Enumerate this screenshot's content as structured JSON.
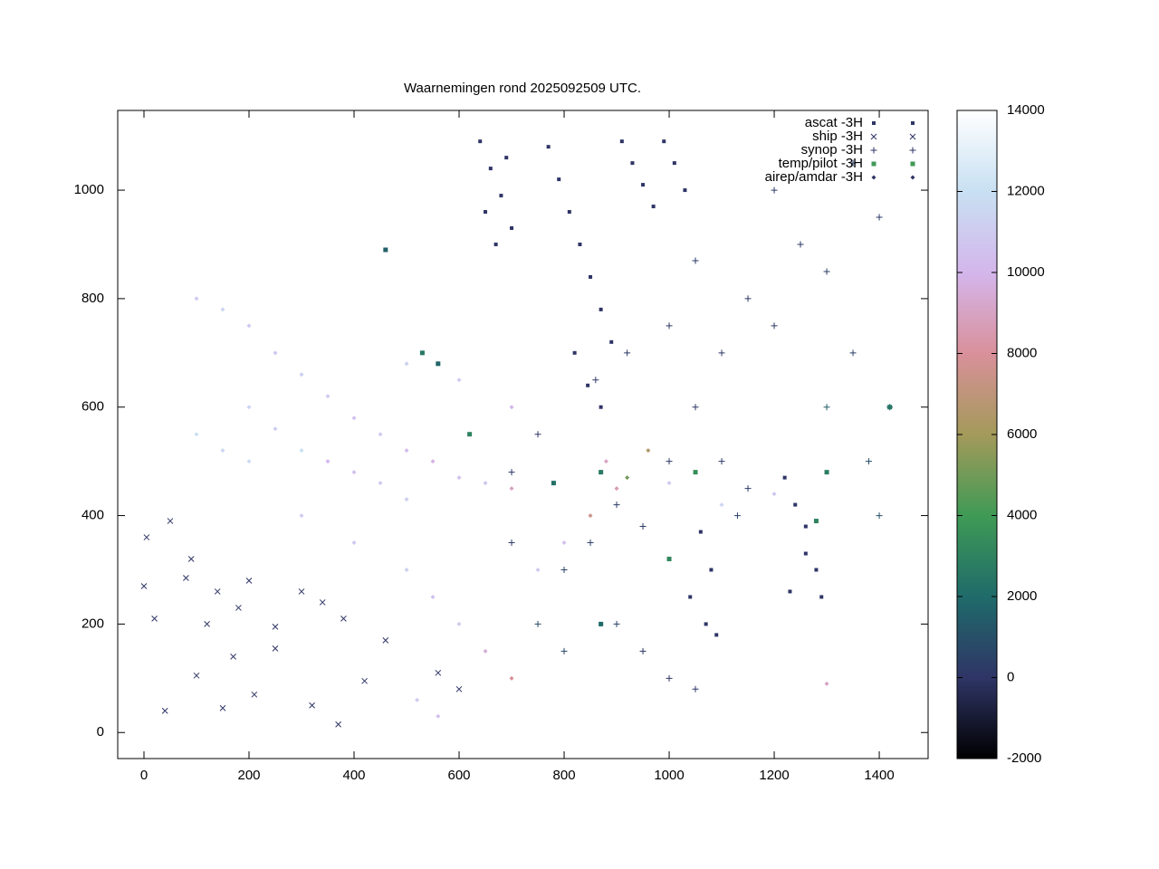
{
  "chart_data": {
    "type": "scatter",
    "title": "Waarnemingen rond 2025092509 UTC.",
    "xlim": [
      -50,
      1493
    ],
    "ylim": [
      -48,
      1147
    ],
    "xticks": [
      0,
      200,
      400,
      600,
      800,
      1000,
      1200,
      1400
    ],
    "yticks": [
      0,
      200,
      400,
      600,
      800,
      1000
    ],
    "colorbar": {
      "lim": [
        -2000,
        14000
      ],
      "ticks": [
        -2000,
        0,
        2000,
        4000,
        6000,
        8000,
        10000,
        12000,
        14000
      ],
      "palette": [
        {
          "value": -2000,
          "color": "#000000"
        },
        {
          "value": 0,
          "color": "#2f3566"
        },
        {
          "value": 2000,
          "color": "#1f6b6a"
        },
        {
          "value": 4000,
          "color": "#3f9a55"
        },
        {
          "value": 6000,
          "color": "#a49a5a"
        },
        {
          "value": 8000,
          "color": "#d9909a"
        },
        {
          "value": 10000,
          "color": "#d4b6ec"
        },
        {
          "value": 12000,
          "color": "#c8e0f2"
        },
        {
          "value": 14000,
          "color": "#ffffff"
        }
      ]
    },
    "series": [
      {
        "name": "ascat -3H",
        "marker": "dot",
        "color": "#2f3566",
        "x": [
          640,
          660,
          680,
          700,
          650,
          670,
          690,
          770,
          790,
          810,
          830,
          850,
          870,
          890,
          820,
          845,
          870,
          910,
          930,
          950,
          970,
          990,
          1010,
          1030,
          1060,
          1080,
          1040,
          1070,
          1090,
          1220,
          1240,
          1260,
          1280,
          1230,
          1260,
          1290
        ],
        "y": [
          1090,
          1040,
          990,
          930,
          960,
          900,
          1060,
          1080,
          1020,
          960,
          900,
          840,
          780,
          720,
          700,
          640,
          600,
          1090,
          1050,
          1010,
          970,
          1090,
          1050,
          1000,
          370,
          300,
          250,
          200,
          180,
          470,
          420,
          380,
          300,
          260,
          330,
          250
        ],
        "z": [
          0,
          0,
          0,
          0,
          0,
          0,
          0,
          0,
          0,
          0,
          0,
          0,
          0,
          0,
          0,
          0,
          0,
          0,
          0,
          0,
          0,
          0,
          0,
          0,
          0,
          0,
          0,
          0,
          0,
          0,
          0,
          0,
          0,
          0,
          0,
          0
        ]
      },
      {
        "name": "ship -3H",
        "marker": "cross",
        "color": "#2f3566",
        "x": [
          5,
          20,
          50,
          80,
          100,
          140,
          170,
          200,
          250,
          300,
          340,
          380,
          420,
          460,
          150,
          210,
          320,
          370,
          40,
          560,
          600,
          0,
          90,
          120,
          250,
          180
        ],
        "y": [
          360,
          210,
          390,
          285,
          105,
          260,
          140,
          280,
          155,
          260,
          240,
          210,
          95,
          170,
          45,
          70,
          50,
          15,
          40,
          110,
          80,
          270,
          320,
          200,
          195,
          230
        ],
        "z": [
          0,
          10,
          0,
          5,
          0,
          0,
          10,
          0,
          0,
          5,
          0,
          0,
          0,
          10,
          0,
          0,
          0,
          5,
          0,
          0,
          10,
          0,
          0,
          5,
          0,
          0
        ]
      },
      {
        "name": "synop -3H",
        "marker": "plus",
        "color": "#2f3566",
        "x": [
          700,
          750,
          800,
          850,
          900,
          950,
          1000,
          1050,
          1100,
          1150,
          1200,
          1250,
          1300,
          1350,
          1400,
          900,
          950,
          1000,
          1050,
          800,
          750,
          700,
          1100,
          1150,
          1300,
          1420,
          1380,
          860,
          920,
          1000,
          1050,
          1200,
          1350,
          1400,
          1130
        ],
        "y": [
          480,
          550,
          300,
          350,
          420,
          380,
          500,
          600,
          700,
          800,
          750,
          900,
          850,
          700,
          950,
          200,
          150,
          100,
          80,
          150,
          200,
          350,
          500,
          450,
          600,
          600,
          500,
          650,
          700,
          750,
          870,
          1000,
          1050,
          400,
          400
        ],
        "z": [
          100,
          50,
          600,
          400,
          300,
          200,
          250,
          150,
          100,
          150,
          200,
          100,
          300,
          400,
          200,
          500,
          100,
          50,
          80,
          700,
          900,
          300,
          200,
          150,
          1500,
          1200,
          900,
          100,
          150,
          200,
          100,
          250,
          300,
          1000,
          400
        ]
      },
      {
        "name": "temp/pilot -3H",
        "marker": "square",
        "color": "#3f9a55",
        "x": [
          460,
          530,
          560,
          620,
          780,
          870,
          1050,
          1300,
          1280,
          1000,
          1420,
          870
        ],
        "y": [
          890,
          700,
          680,
          550,
          460,
          480,
          480,
          480,
          390,
          320,
          600,
          200
        ],
        "z": [
          1500,
          2500,
          1800,
          3000,
          2200,
          2600,
          3500,
          2800,
          3000,
          3200,
          2500,
          2000
        ]
      },
      {
        "name": "airep/amdar -3H",
        "marker": "diamond",
        "color": "#2f3566",
        "x": [
          100,
          150,
          200,
          250,
          300,
          350,
          400,
          450,
          500,
          550,
          600,
          650,
          700,
          200,
          250,
          300,
          350,
          400,
          450,
          500,
          100,
          150,
          200,
          300,
          400,
          500,
          550,
          600,
          650,
          700,
          750,
          800,
          850,
          900,
          920,
          880,
          960,
          1000,
          1100,
          1200,
          700,
          600,
          500,
          520,
          560,
          1300
        ],
        "y": [
          800,
          780,
          750,
          700,
          660,
          620,
          580,
          550,
          520,
          500,
          470,
          460,
          450,
          600,
          560,
          520,
          500,
          480,
          460,
          430,
          550,
          520,
          500,
          400,
          350,
          300,
          250,
          200,
          150,
          100,
          300,
          350,
          400,
          450,
          470,
          500,
          520,
          460,
          420,
          440,
          600,
          650,
          680,
          60,
          30,
          90
        ],
        "z": [
          11000,
          11500,
          11000,
          10800,
          11200,
          11000,
          10500,
          11000,
          10200,
          9800,
          10500,
          10800,
          9000,
          11500,
          11200,
          12000,
          10000,
          10500,
          11000,
          11200,
          12000,
          11500,
          11800,
          11000,
          10800,
          11200,
          10500,
          11000,
          9500,
          8000,
          11000,
          10500,
          7500,
          8500,
          5000,
          9000,
          6500,
          11000,
          11500,
          10800,
          10000,
          11000,
          11200,
          11000,
          10500,
          9000
        ]
      }
    ]
  }
}
